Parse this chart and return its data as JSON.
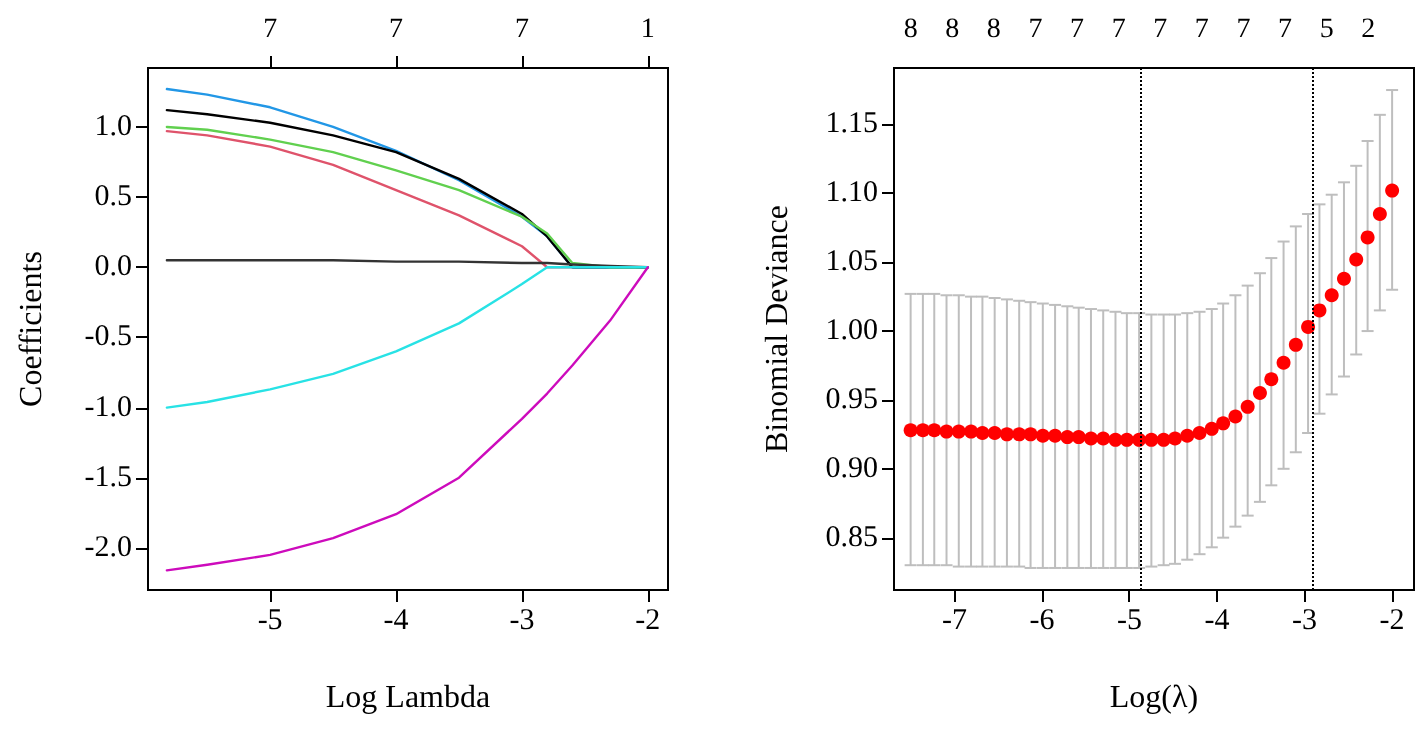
{
  "chart_data": [
    {
      "type": "line",
      "xlabel": "Log Lambda",
      "ylabel": "Coefficients",
      "xlim": [
        -5.97,
        -1.84
      ],
      "xticks": [
        -5,
        -4,
        -3,
        -2
      ],
      "annotations": [
        "7",
        "7",
        "7",
        "1"
      ],
      "ylim": [
        -2.3,
        1.42
      ],
      "yticks": [
        {
          "value": -2,
          "label": "-2.0"
        },
        -1.5,
        {
          "value": -1,
          "label": "-1.0"
        },
        -0.5,
        {
          "value": 0,
          "label": "0.0"
        },
        0.5,
        {
          "value": 1,
          "label": "1.0"
        }
      ],
      "marker": "none",
      "line_style": "solid",
      "grid": false,
      "series": [
        {
          "color": "#2297e6",
          "x": [
            -5.82,
            -5.5,
            -5,
            -4.5,
            -4,
            -3.5,
            -3,
            -2.8,
            -2.6,
            -2.3,
            -2
          ],
          "values": [
            1.27,
            1.23,
            1.14,
            1.0,
            0.83,
            0.62,
            0.36,
            0.22,
            0,
            0,
            0
          ]
        },
        {
          "color": "#000000",
          "x": [
            -5.82,
            -5.5,
            -5,
            -4.5,
            -4,
            -3.5,
            -3,
            -2.8,
            -2.6,
            -2.3,
            -2
          ],
          "values": [
            1.12,
            1.09,
            1.03,
            0.94,
            0.82,
            0.63,
            0.38,
            0.22,
            0,
            0,
            0
          ]
        },
        {
          "color": "#61d04f",
          "x": [
            -5.82,
            -5.5,
            -5,
            -4.5,
            -4,
            -3.5,
            -3,
            -2.8,
            -2.6,
            -2.3,
            -2
          ],
          "values": [
            1.0,
            0.98,
            0.91,
            0.82,
            0.69,
            0.55,
            0.36,
            0.24,
            0.03,
            0,
            0
          ]
        },
        {
          "color": "#df536b",
          "x": [
            -5.82,
            -5.5,
            -5,
            -4.5,
            -4,
            -3.5,
            -3,
            -2.8,
            -2.6
          ],
          "values": [
            0.97,
            0.94,
            0.86,
            0.73,
            0.55,
            0.37,
            0.15,
            0,
            0
          ]
        },
        {
          "color": "#333333",
          "x": [
            -5.82,
            -5.5,
            -5,
            -4.5,
            -4,
            -3.5,
            -3,
            -2.8,
            -2.6,
            -2.3,
            -2
          ],
          "values": [
            0.05,
            0.05,
            0.05,
            0.05,
            0.04,
            0.04,
            0.03,
            0.03,
            0.02,
            0.01,
            0
          ]
        },
        {
          "color": "#28e2e5",
          "x": [
            -5.82,
            -5.5,
            -5,
            -4.5,
            -4,
            -3.5,
            -3,
            -2.8,
            -2.6,
            -2.3,
            -2
          ],
          "values": [
            -1.0,
            -0.96,
            -0.87,
            -0.76,
            -0.6,
            -0.4,
            -0.12,
            0,
            0,
            0,
            0
          ]
        },
        {
          "color": "#cd0bbc",
          "x": [
            -5.82,
            -5.5,
            -5,
            -4.5,
            -4,
            -3.5,
            -3,
            -2.8,
            -2.6,
            -2.3,
            -2
          ],
          "values": [
            -2.16,
            -2.12,
            -2.05,
            -1.93,
            -1.76,
            -1.5,
            -1.08,
            -0.9,
            -0.7,
            -0.38,
            0
          ]
        }
      ]
    },
    {
      "type": "scatter",
      "xlabel": "Log(λ)",
      "ylabel": "Binomial Deviance",
      "xlim": [
        -7.69,
        -1.75
      ],
      "xticks": [
        -7,
        -6,
        -5,
        -4,
        -3,
        -2
      ],
      "annotations": [
        "8",
        "8",
        "8",
        "7",
        "7",
        "7",
        "7",
        "7",
        "7",
        "7",
        "5",
        "2"
      ],
      "ylim": [
        0.812,
        1.191
      ],
      "yticks": [
        0.85,
        {
          "value": 0.9,
          "label": "0.90"
        },
        0.95,
        {
          "value": 1,
          "label": "1.00"
        },
        1.05,
        {
          "value": 1.1,
          "label": "1.10"
        },
        1.15
      ],
      "marker": "circle",
      "grid": false,
      "ref_lines": [
        {
          "axis": "x",
          "value": -4.88,
          "color": "#000000",
          "line_style": "dotted"
        },
        {
          "axis": "x",
          "value": -2.92,
          "color": "#000000",
          "line_style": "dotted"
        }
      ],
      "series": [
        {
          "color": "#ff0000",
          "x": [
            -7.5,
            -7.36,
            -7.23,
            -7.09,
            -6.95,
            -6.81,
            -6.68,
            -6.54,
            -6.4,
            -6.26,
            -6.13,
            -5.99,
            -5.85,
            -5.71,
            -5.58,
            -5.44,
            -5.3,
            -5.16,
            -5.03,
            -4.89,
            -4.75,
            -4.61,
            -4.48,
            -4.34,
            -4.2,
            -4.06,
            -3.93,
            -3.79,
            -3.65,
            -3.51,
            -3.38,
            -3.24,
            -3.1,
            -2.96,
            -2.83,
            -2.69,
            -2.55,
            -2.41,
            -2.28,
            -2.14,
            -2.0
          ],
          "values": [
            0.928,
            0.928,
            0.928,
            0.927,
            0.927,
            0.927,
            0.926,
            0.926,
            0.925,
            0.925,
            0.925,
            0.924,
            0.924,
            0.923,
            0.923,
            0.922,
            0.922,
            0.921,
            0.921,
            0.921,
            0.921,
            0.921,
            0.922,
            0.924,
            0.926,
            0.929,
            0.933,
            0.938,
            0.945,
            0.955,
            0.965,
            0.977,
            0.99,
            1.003,
            1.015,
            1.026,
            1.038,
            1.052,
            1.068,
            1.085,
            1.102
          ],
          "errors": [
            [
              0.83,
              1.027
            ],
            [
              0.83,
              1.027
            ],
            [
              0.83,
              1.027
            ],
            [
              0.83,
              1.026
            ],
            [
              0.829,
              1.026
            ],
            [
              0.829,
              1.025
            ],
            [
              0.829,
              1.025
            ],
            [
              0.829,
              1.024
            ],
            [
              0.829,
              1.023
            ],
            [
              0.829,
              1.022
            ],
            [
              0.828,
              1.021
            ],
            [
              0.828,
              1.02
            ],
            [
              0.828,
              1.019
            ],
            [
              0.828,
              1.018
            ],
            [
              0.828,
              1.017
            ],
            [
              0.828,
              1.016
            ],
            [
              0.828,
              1.015
            ],
            [
              0.828,
              1.014
            ],
            [
              0.828,
              1.013
            ],
            [
              0.828,
              1.013
            ],
            [
              0.829,
              1.012
            ],
            [
              0.83,
              1.012
            ],
            [
              0.831,
              1.012
            ],
            [
              0.834,
              1.013
            ],
            [
              0.838,
              1.014
            ],
            [
              0.843,
              1.016
            ],
            [
              0.85,
              1.02
            ],
            [
              0.858,
              1.026
            ],
            [
              0.866,
              1.033
            ],
            [
              0.876,
              1.042
            ],
            [
              0.888,
              1.053
            ],
            [
              0.9,
              1.065
            ],
            [
              0.912,
              1.076
            ],
            [
              0.926,
              1.085
            ],
            [
              0.94,
              1.092
            ],
            [
              0.954,
              1.099
            ],
            [
              0.967,
              1.108
            ],
            [
              0.983,
              1.12
            ],
            [
              1.0,
              1.138
            ],
            [
              1.015,
              1.157
            ],
            [
              1.03,
              1.175
            ]
          ]
        }
      ]
    }
  ]
}
